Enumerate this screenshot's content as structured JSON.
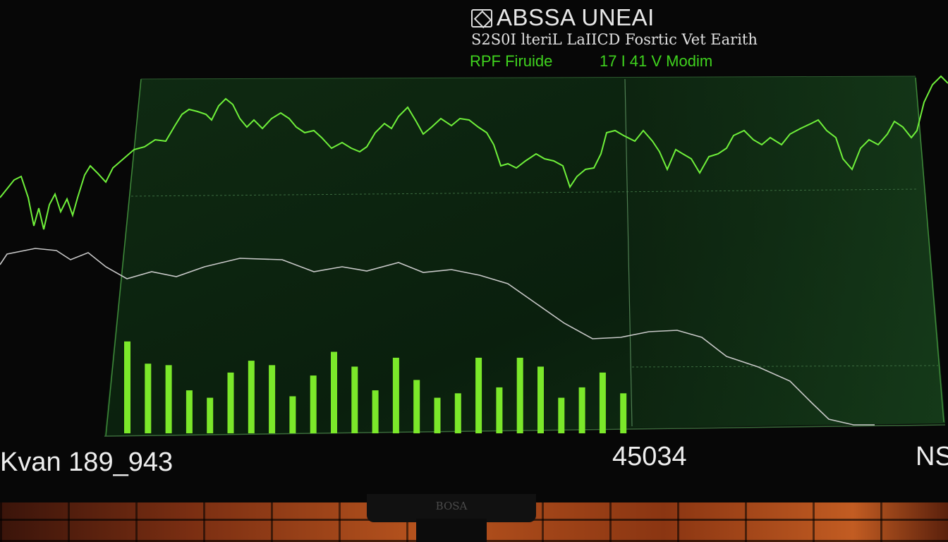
{
  "header": {
    "title": "ABSSA UNEAI",
    "subtitle": "S2S0I lteriL LaIICD Fosrtic Vet Earith",
    "ticker_label": "RPF Firuide",
    "ticker_value": "17 I 41 V Modim"
  },
  "footer": {
    "left_readout": "Kvan 189_943",
    "center_readout": "45034",
    "right_readout": "NS"
  },
  "stand_label": "BOSA",
  "colors": {
    "price_line": "#6ff03a",
    "volume_bars": "#7be82a",
    "secondary_line": "#c8c8c8",
    "panel_bg": "#0c2410"
  },
  "volume_bars": [
    0.62,
    0.47,
    0.46,
    0.29,
    0.24,
    0.41,
    0.49,
    0.46,
    0.25,
    0.39,
    0.55,
    0.45,
    0.29,
    0.51,
    0.36,
    0.24,
    0.27,
    0.51,
    0.31,
    0.51,
    0.45,
    0.24,
    0.31,
    0.41,
    0.27
  ]
}
